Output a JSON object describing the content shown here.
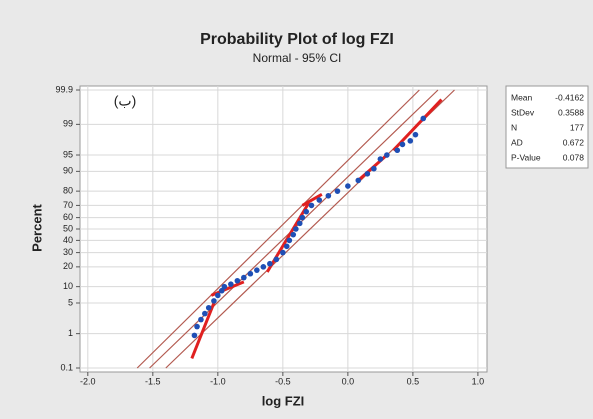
{
  "chart_data": {
    "type": "probability",
    "title": "Probability Plot of log FZI",
    "subtitle": "Normal - 95% CI",
    "xlabel": "log FZI",
    "ylabel": "Percent",
    "annotation": "(ب)",
    "xlim": [
      -2.06,
      1.07
    ],
    "xticks": [
      {
        "value": -2,
        "label": "-2.0"
      },
      -1.5,
      {
        "value": -1,
        "label": "-1.0"
      },
      -0.5,
      {
        "value": 0,
        "label": "0.0"
      },
      0.5,
      {
        "value": 1,
        "label": "1.0"
      }
    ],
    "ylim": [
      0.1,
      99.9
    ],
    "yticks": [
      0.1,
      1,
      5,
      10,
      20,
      30,
      40,
      50,
      60,
      70,
      80,
      90,
      95,
      99,
      99.9
    ],
    "grid": true,
    "points": {
      "color": "#1f4fb5",
      "x": [
        -1.18,
        -1.16,
        -1.13,
        -1.1,
        -1.07,
        -1.03,
        -1.0,
        -0.97,
        -0.95,
        -0.9,
        -0.85,
        -0.8,
        -0.75,
        -0.7,
        -0.65,
        -0.6,
        -0.55,
        -0.5,
        -0.47,
        -0.45,
        -0.42,
        -0.4,
        -0.37,
        -0.35,
        -0.32,
        -0.28,
        -0.22,
        -0.15,
        -0.08,
        0.0,
        0.08,
        0.15,
        0.2,
        0.25,
        0.3,
        0.38,
        0.42,
        0.48,
        0.52,
        0.58
      ],
      "y": [
        0.9,
        1.5,
        2.2,
        3,
        4,
        5.5,
        7,
        8.5,
        10,
        11,
        12.5,
        14,
        16,
        18,
        20,
        22,
        25,
        30,
        35,
        40,
        45,
        50,
        55,
        60,
        65,
        70,
        74,
        77,
        80,
        83,
        86,
        89,
        91,
        94,
        95,
        96,
        97,
        97.5,
        98.2,
        99.3
      ]
    },
    "lines": [
      {
        "color": "#b35a50",
        "x": [
          -1.62,
          0.55
        ],
        "y": [
          0.1,
          99.9
        ]
      },
      {
        "color": "#b35a50",
        "x": [
          -1.525,
          0.693
        ],
        "y": [
          0.1,
          99.9
        ]
      },
      {
        "color": "#b35a50",
        "x": [
          -1.4,
          0.82
        ],
        "y": [
          0.1,
          99.9
        ]
      },
      {
        "color": "#e02020",
        "x": [
          -1.2,
          -1.03
        ],
        "y": [
          0.2,
          5
        ]
      },
      {
        "color": "#e02020",
        "x": [
          -1.05,
          -0.8
        ],
        "y": [
          7,
          12
        ]
      },
      {
        "color": "#e02020",
        "x": [
          -0.62,
          -0.3
        ],
        "y": [
          17,
          72
        ]
      },
      {
        "color": "#e02020",
        "x": [
          -0.35,
          -0.2
        ],
        "y": [
          70,
          78
        ]
      },
      {
        "color": "#e02020",
        "x": [
          0.08,
          0.3
        ],
        "y": [
          86,
          95
        ]
      },
      {
        "color": "#e02020",
        "x": [
          0.35,
          0.72
        ],
        "y": [
          96,
          99.8
        ]
      }
    ],
    "stats": [
      {
        "label": "Mean",
        "value": -0.4162
      },
      {
        "label": "StDev",
        "value": 0.3588
      },
      {
        "label": "N",
        "value": 177
      },
      {
        "label": "AD",
        "value": 0.672
      },
      {
        "label": "P-Value",
        "value": 0.078
      }
    ]
  }
}
